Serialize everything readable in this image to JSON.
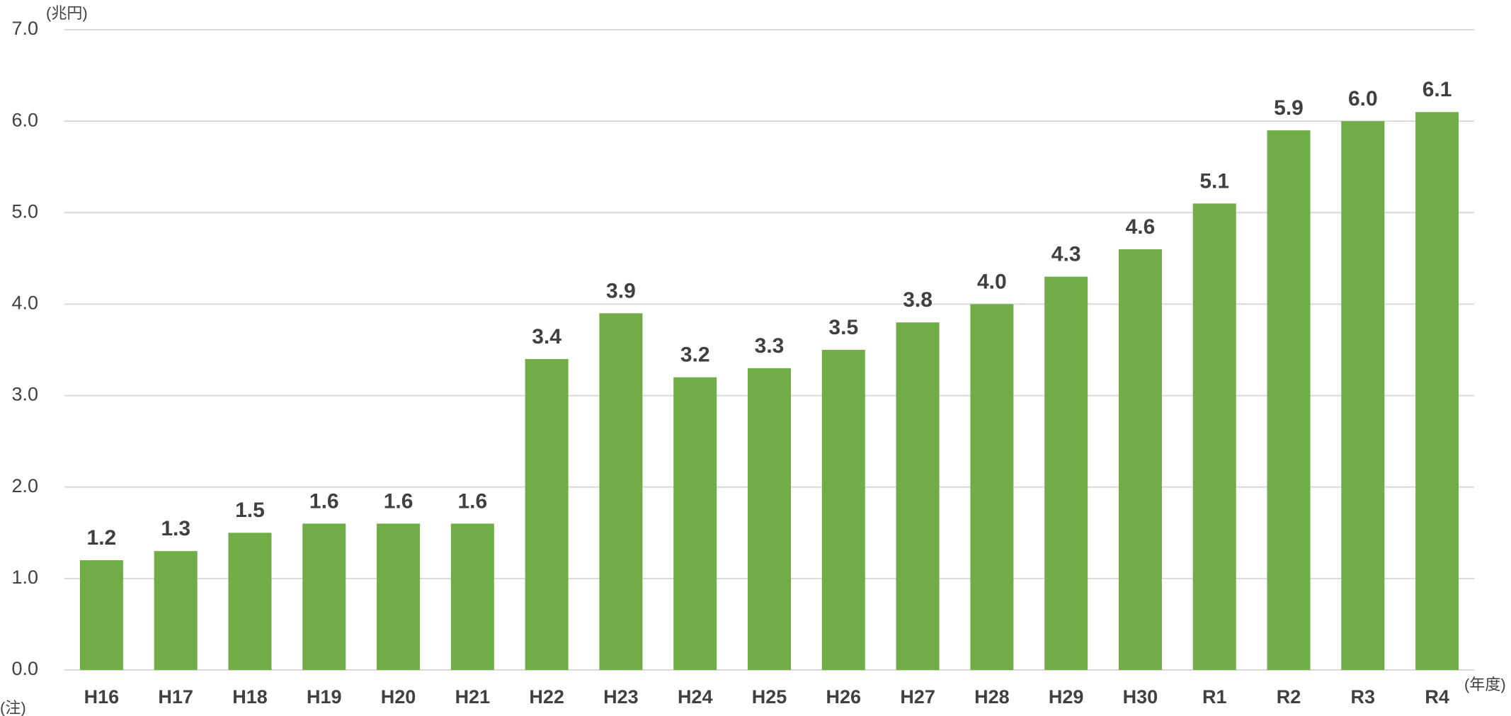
{
  "chart_data": {
    "type": "bar",
    "y_unit": "(兆円)",
    "x_unit": "(年度)",
    "note": "(注)",
    "categories": [
      "H16",
      "H17",
      "H18",
      "H19",
      "H20",
      "H21",
      "H22",
      "H23",
      "H24",
      "H25",
      "H26",
      "H27",
      "H28",
      "H29",
      "H30",
      "R1",
      "R2",
      "R3",
      "R4"
    ],
    "values": [
      1.2,
      1.3,
      1.5,
      1.6,
      1.6,
      1.6,
      3.4,
      3.9,
      3.2,
      3.3,
      3.5,
      3.8,
      4.0,
      4.3,
      4.6,
      5.1,
      5.9,
      6.0,
      6.1
    ],
    "value_labels": [
      "1.2",
      "1.3",
      "1.5",
      "1.6",
      "1.6",
      "1.6",
      "3.4",
      "3.9",
      "3.2",
      "3.3",
      "3.5",
      "3.8",
      "4.0",
      "4.3",
      "4.6",
      "5.1",
      "5.9",
      "6.0",
      "6.1"
    ],
    "color": "#70ad47",
    "ylim": [
      0,
      7
    ],
    "yticks": [
      {
        "value": 0,
        "label": "0.0"
      },
      {
        "value": 1,
        "label": "1.0"
      },
      {
        "value": 2,
        "label": "2.0"
      },
      {
        "value": 3,
        "label": "3.0"
      },
      {
        "value": 4,
        "label": "4.0"
      },
      {
        "value": 5,
        "label": "5.0"
      },
      {
        "value": 6,
        "label": "6.0"
      },
      {
        "value": 7,
        "label": "7.0"
      }
    ],
    "grid": true
  }
}
